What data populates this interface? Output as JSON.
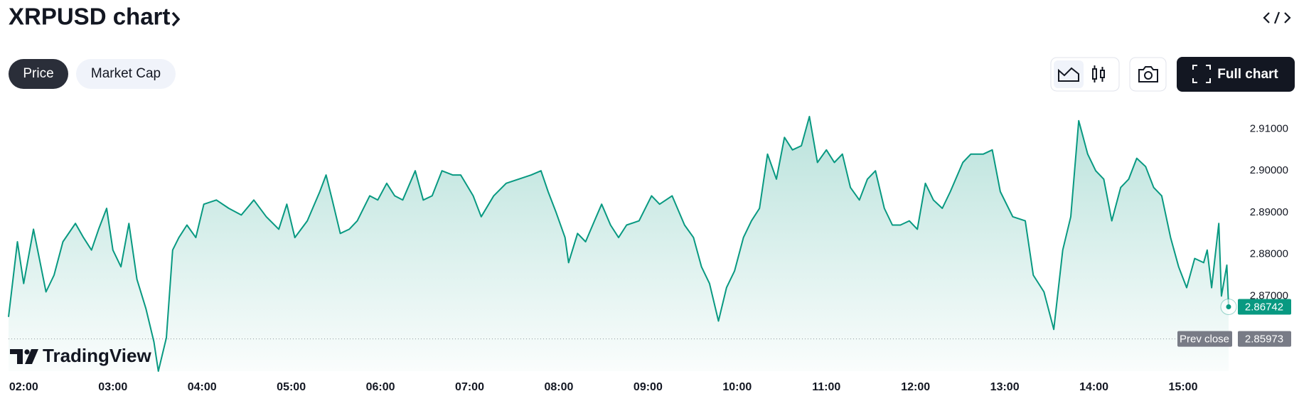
{
  "header": {
    "title": "XRPUSD chart",
    "tabs": [
      "Price",
      "Market Cap"
    ],
    "full_chart": "Full chart"
  },
  "watermark": "TradingView",
  "chart_data": {
    "type": "area",
    "color": "#089981",
    "x": [
      1.83,
      1.93,
      2.0,
      2.11,
      2.25,
      2.34,
      2.44,
      2.58,
      2.67,
      2.76,
      2.84,
      2.93,
      3.0,
      3.09,
      3.18,
      3.27,
      3.37,
      3.46,
      3.51,
      3.6,
      3.67,
      3.74,
      3.83,
      3.93,
      4.02,
      4.16,
      4.3,
      4.44,
      4.58,
      4.72,
      4.86,
      4.95,
      5.04,
      5.18,
      5.32,
      5.39,
      5.46,
      5.55,
      5.65,
      5.74,
      5.88,
      5.97,
      6.07,
      6.16,
      6.25,
      6.39,
      6.48,
      6.58,
      6.69,
      6.81,
      6.9,
      7.04,
      7.13,
      7.27,
      7.41,
      7.55,
      7.69,
      7.8,
      7.88,
      7.97,
      8.07,
      8.11,
      8.21,
      8.3,
      8.4,
      8.48,
      8.58,
      8.67,
      8.76,
      8.9,
      9.04,
      9.13,
      9.27,
      9.41,
      9.51,
      9.6,
      9.69,
      9.79,
      9.88,
      9.97,
      10.07,
      10.16,
      10.25,
      10.34,
      10.44,
      10.53,
      10.62,
      10.72,
      10.81,
      10.9,
      11.0,
      11.09,
      11.18,
      11.27,
      11.37,
      11.46,
      11.55,
      11.65,
      11.74,
      11.83,
      11.93,
      12.02,
      12.11,
      12.2,
      12.3,
      12.39,
      12.53,
      12.62,
      12.76,
      12.86,
      12.95,
      13.09,
      13.23,
      13.32,
      13.44,
      13.55,
      13.65,
      13.74,
      13.83,
      13.93,
      14.02,
      14.11,
      14.2,
      14.3,
      14.39,
      14.48,
      14.58,
      14.67,
      14.76,
      14.86,
      14.95,
      15.04,
      15.13,
      15.23,
      15.27,
      15.32,
      15.4,
      15.43,
      15.49,
      15.51
    ],
    "values": [
      2.865,
      2.883,
      2.873,
      2.886,
      2.871,
      2.875,
      2.883,
      2.8874,
      2.884,
      2.881,
      2.886,
      2.891,
      2.881,
      2.877,
      2.8874,
      2.874,
      2.867,
      2.859,
      2.852,
      2.86,
      2.881,
      2.884,
      2.887,
      2.884,
      2.892,
      2.893,
      2.891,
      2.8894,
      2.893,
      2.889,
      2.886,
      2.892,
      2.884,
      2.888,
      2.895,
      2.899,
      2.893,
      2.885,
      2.886,
      2.888,
      2.894,
      2.893,
      2.897,
      2.894,
      2.893,
      2.9,
      2.893,
      2.894,
      2.9,
      2.899,
      2.899,
      2.894,
      2.889,
      2.894,
      2.897,
      2.898,
      2.899,
      2.9,
      2.895,
      2.89,
      2.884,
      2.878,
      2.885,
      2.883,
      2.888,
      2.892,
      2.887,
      2.884,
      2.887,
      2.888,
      2.894,
      2.892,
      2.894,
      2.887,
      2.884,
      2.877,
      2.873,
      2.864,
      2.872,
      2.876,
      2.884,
      2.888,
      2.891,
      2.904,
      2.898,
      2.908,
      2.905,
      2.906,
      2.913,
      2.902,
      2.905,
      2.902,
      2.904,
      2.896,
      2.893,
      2.898,
      2.9,
      2.891,
      2.887,
      2.887,
      2.888,
      2.886,
      2.897,
      2.893,
      2.891,
      2.895,
      2.902,
      2.904,
      2.904,
      2.905,
      2.895,
      2.889,
      2.888,
      2.875,
      2.871,
      2.862,
      2.881,
      2.889,
      2.912,
      2.904,
      2.9,
      2.898,
      2.888,
      2.896,
      2.898,
      2.903,
      2.901,
      2.896,
      2.894,
      2.884,
      2.877,
      2.872,
      2.879,
      2.878,
      2.881,
      2.872,
      2.8874,
      2.87,
      2.8774,
      2.86742
    ],
    "xlim": [
      1.83,
      15.55
    ],
    "xticks": [
      {
        "value": 2,
        "label": "02:00"
      },
      {
        "value": 3,
        "label": "03:00"
      },
      {
        "value": 4,
        "label": "04:00"
      },
      {
        "value": 5,
        "label": "05:00"
      },
      {
        "value": 6,
        "label": "06:00"
      },
      {
        "value": 7,
        "label": "07:00"
      },
      {
        "value": 8,
        "label": "08:00"
      },
      {
        "value": 9,
        "label": "09:00"
      },
      {
        "value": 10,
        "label": "10:00"
      },
      {
        "value": 11,
        "label": "11:00"
      },
      {
        "value": 12,
        "label": "12:00"
      },
      {
        "value": 13,
        "label": "13:00"
      },
      {
        "value": 14,
        "label": "14:00"
      },
      {
        "value": 15,
        "label": "15:00"
      }
    ],
    "ylim": [
      2.852,
      2.914
    ],
    "yticks": [
      {
        "value": 2.87,
        "label": "2.87000"
      },
      {
        "value": 2.88,
        "label": "2.88000"
      },
      {
        "value": 2.89,
        "label": "2.89000"
      },
      {
        "value": 2.9,
        "label": "2.90000"
      },
      {
        "value": 2.91,
        "label": "2.91000"
      }
    ],
    "prev_close": {
      "label": "Prev close",
      "value": 2.85973,
      "value_label": "2.85973"
    },
    "grid": false
  }
}
